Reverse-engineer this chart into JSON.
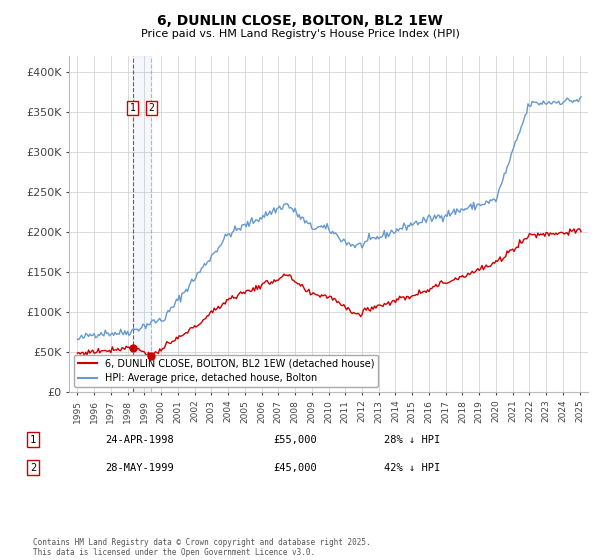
{
  "title": "6, DUNLIN CLOSE, BOLTON, BL2 1EW",
  "subtitle": "Price paid vs. HM Land Registry's House Price Index (HPI)",
  "legend_line1": "6, DUNLIN CLOSE, BOLTON, BL2 1EW (detached house)",
  "legend_line2": "HPI: Average price, detached house, Bolton",
  "footer": "Contains HM Land Registry data © Crown copyright and database right 2025.\nThis data is licensed under the Open Government Licence v3.0.",
  "sales": [
    {
      "index": 1,
      "date": "24-APR-1998",
      "price": 55000,
      "hpi_diff": "28% ↓ HPI",
      "x_year": 1998.31
    },
    {
      "index": 2,
      "date": "28-MAY-1999",
      "price": 45000,
      "hpi_diff": "42% ↓ HPI",
      "x_year": 1999.42
    }
  ],
  "sale_color": "#cc0000",
  "hpi_color": "#6699cc",
  "background_color": "#ffffff",
  "grid_color": "#cccccc",
  "ylabel_ticks": [
    "£0",
    "£50K",
    "£100K",
    "£150K",
    "£200K",
    "£250K",
    "£300K",
    "£350K",
    "£400K"
  ],
  "ytick_values": [
    0,
    50000,
    100000,
    150000,
    200000,
    250000,
    300000,
    350000,
    400000
  ],
  "xlim": [
    1994.5,
    2025.5
  ],
  "ylim": [
    0,
    420000
  ],
  "figsize": [
    6.0,
    5.6
  ],
  "dpi": 100
}
